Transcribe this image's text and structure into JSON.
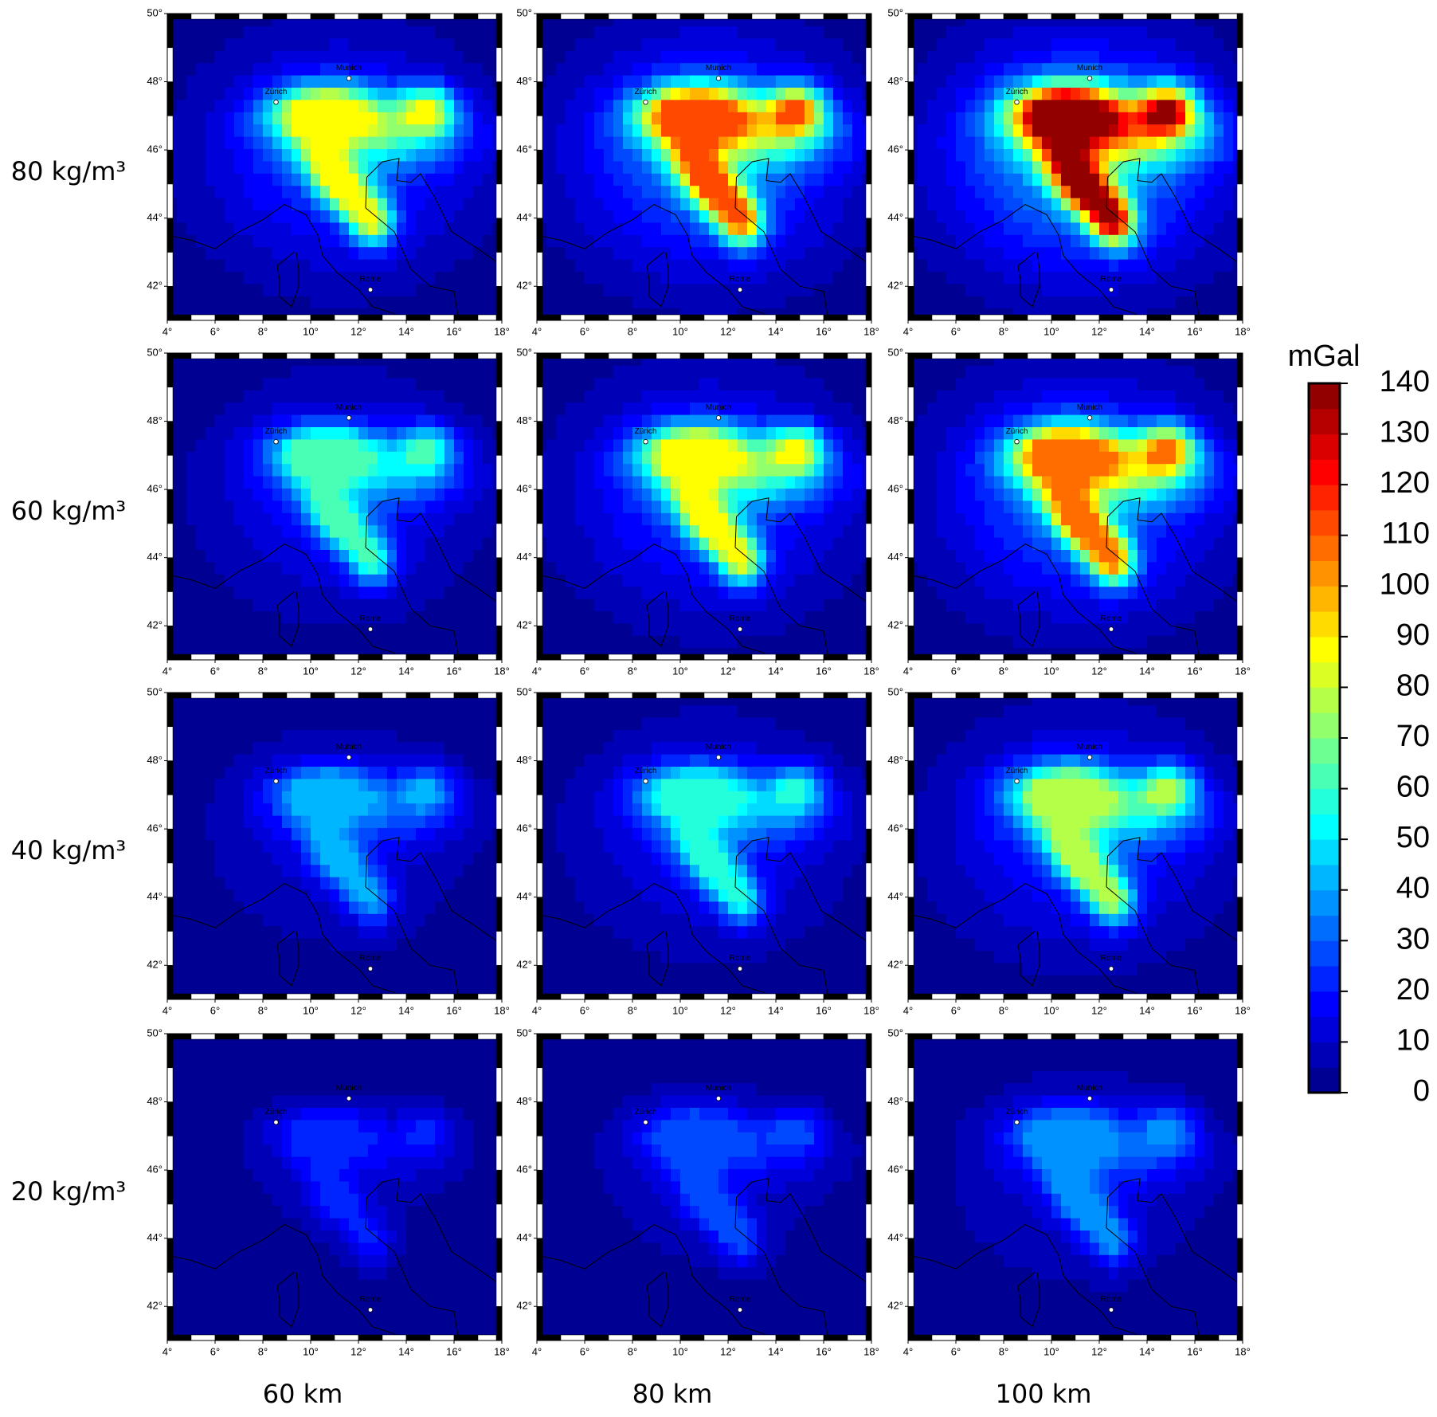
{
  "chart_data": {
    "type": "heatmap",
    "rows": [
      "80 kg/m³",
      "60 kg/m³",
      "40 kg/m³",
      "20 kg/m³"
    ],
    "columns": [
      "60 km",
      "80 km",
      "100 km"
    ],
    "peak": [
      [
        85,
        110,
        135
      ],
      [
        60,
        85,
        105
      ],
      [
        40,
        55,
        75
      ],
      [
        20,
        28,
        38
      ]
    ],
    "xlim": [
      4,
      18
    ],
    "ylim": [
      41,
      50
    ],
    "xticks": [
      {
        "value": 4,
        "label": "4°"
      },
      {
        "value": 6,
        "label": "6°"
      },
      {
        "value": 8,
        "label": "8°"
      },
      {
        "value": 10,
        "label": "10°"
      },
      {
        "value": 12,
        "label": "12°"
      },
      {
        "value": 14,
        "label": "14°"
      },
      {
        "value": 16,
        "label": "16°"
      },
      {
        "value": 18,
        "label": "18°"
      }
    ],
    "yticks": [
      {
        "value": 42,
        "label": "42°"
      },
      {
        "value": 44,
        "label": "44°"
      },
      {
        "value": 46,
        "label": "46°"
      },
      {
        "value": 48,
        "label": "48°"
      },
      {
        "value": 50,
        "label": "50°"
      }
    ],
    "cities": [
      {
        "name": "Munich",
        "lon": 11.6,
        "lat": 48.1
      },
      {
        "name": "Zürich",
        "lon": 8.55,
        "lat": 47.4
      },
      {
        "name": "Rome",
        "lon": 12.5,
        "lat": 41.9
      }
    ],
    "colorbar": {
      "label": "mGal",
      "lim": [
        0,
        140
      ],
      "ticks": [
        0,
        10,
        20,
        30,
        40,
        50,
        60,
        70,
        80,
        90,
        100,
        110,
        120,
        130,
        140
      ]
    }
  }
}
